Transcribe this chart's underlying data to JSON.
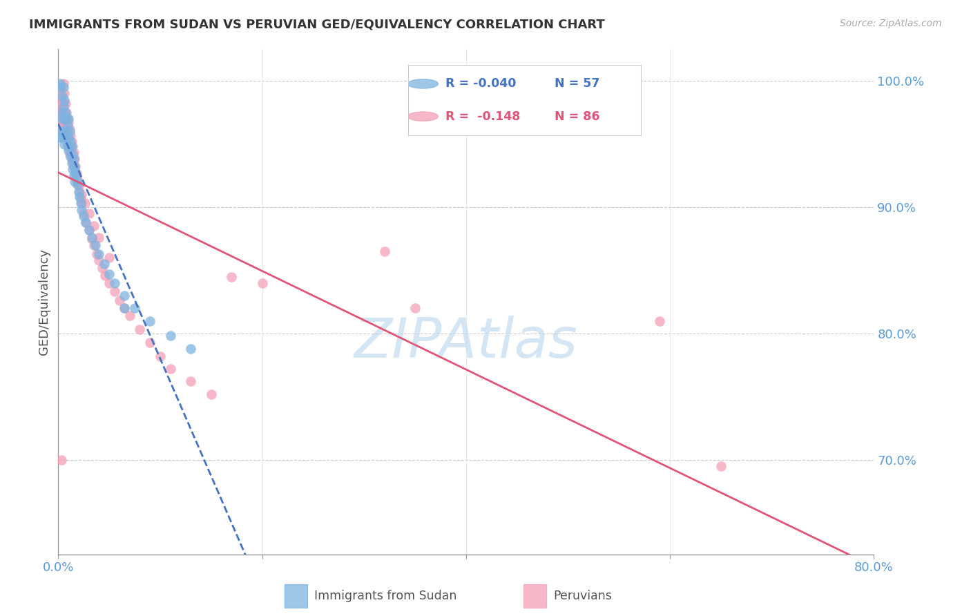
{
  "title": "IMMIGRANTS FROM SUDAN VS PERUVIAN GED/EQUIVALENCY CORRELATION CHART",
  "source": "Source: ZipAtlas.com",
  "ylabel": "GED/Equivalency",
  "x_min": 0.0,
  "x_max": 0.8,
  "y_min": 0.625,
  "y_max": 1.025,
  "y_ticks": [
    0.7,
    0.8,
    0.9,
    1.0
  ],
  "y_tick_labels": [
    "70.0%",
    "80.0%",
    "90.0%",
    "100.0%"
  ],
  "x_ticks": [
    0.0,
    0.2,
    0.4,
    0.6,
    0.8
  ],
  "x_tick_labels": [
    "0.0%",
    "",
    "",
    "",
    "80.0%"
  ],
  "legend_r_blue": "-0.040",
  "legend_n_blue": "57",
  "legend_r_pink": "-0.148",
  "legend_n_pink": "86",
  "blue_color": "#7db3e0",
  "pink_color": "#f4a0b8",
  "trend_blue_color": "#4472c4",
  "trend_pink_color": "#e05577",
  "watermark": "ZIPAtlas",
  "watermark_color": "#b8d4ee",
  "blue_dots_x": [
    0.001,
    0.002,
    0.003,
    0.003,
    0.004,
    0.004,
    0.005,
    0.005,
    0.005,
    0.006,
    0.006,
    0.006,
    0.007,
    0.007,
    0.008,
    0.008,
    0.009,
    0.009,
    0.01,
    0.01,
    0.01,
    0.011,
    0.011,
    0.012,
    0.012,
    0.013,
    0.013,
    0.014,
    0.014,
    0.015,
    0.015,
    0.016,
    0.016,
    0.017,
    0.018,
    0.019,
    0.02,
    0.021,
    0.022,
    0.023,
    0.025,
    0.027,
    0.03,
    0.033,
    0.036,
    0.04,
    0.045,
    0.05,
    0.055,
    0.065,
    0.075,
    0.09,
    0.11,
    0.13,
    0.002,
    0.004,
    0.065
  ],
  "blue_dots_y": [
    0.955,
    0.995,
    0.975,
    0.96,
    0.97,
    0.955,
    0.995,
    0.98,
    0.96,
    0.985,
    0.97,
    0.95,
    0.975,
    0.96,
    0.97,
    0.955,
    0.965,
    0.95,
    0.97,
    0.955,
    0.945,
    0.96,
    0.948,
    0.952,
    0.94,
    0.948,
    0.935,
    0.942,
    0.93,
    0.938,
    0.925,
    0.932,
    0.92,
    0.928,
    0.922,
    0.918,
    0.912,
    0.908,
    0.903,
    0.898,
    0.893,
    0.888,
    0.882,
    0.876,
    0.87,
    0.863,
    0.855,
    0.847,
    0.84,
    0.83,
    0.82,
    0.81,
    0.798,
    0.788,
    0.998,
    0.988,
    0.82
  ],
  "pink_dots_x": [
    0.001,
    0.002,
    0.003,
    0.003,
    0.004,
    0.004,
    0.005,
    0.005,
    0.005,
    0.006,
    0.006,
    0.007,
    0.007,
    0.008,
    0.008,
    0.009,
    0.009,
    0.01,
    0.01,
    0.011,
    0.011,
    0.012,
    0.012,
    0.013,
    0.013,
    0.014,
    0.014,
    0.015,
    0.015,
    0.016,
    0.017,
    0.018,
    0.019,
    0.02,
    0.021,
    0.022,
    0.023,
    0.025,
    0.027,
    0.03,
    0.033,
    0.035,
    0.038,
    0.04,
    0.043,
    0.046,
    0.05,
    0.055,
    0.06,
    0.065,
    0.07,
    0.08,
    0.09,
    0.1,
    0.11,
    0.13,
    0.15,
    0.002,
    0.003,
    0.004,
    0.005,
    0.006,
    0.007,
    0.008,
    0.009,
    0.01,
    0.011,
    0.012,
    0.013,
    0.015,
    0.017,
    0.02,
    0.023,
    0.026,
    0.03,
    0.035,
    0.04,
    0.05,
    0.003,
    0.17,
    0.2,
    0.35,
    0.59,
    0.32,
    0.003,
    0.65
  ],
  "pink_dots_y": [
    0.97,
    0.99,
    0.975,
    0.96,
    0.978,
    0.965,
    0.998,
    0.983,
    0.968,
    0.99,
    0.975,
    0.982,
    0.968,
    0.975,
    0.963,
    0.97,
    0.958,
    0.967,
    0.955,
    0.962,
    0.95,
    0.957,
    0.945,
    0.952,
    0.94,
    0.948,
    0.936,
    0.943,
    0.932,
    0.938,
    0.932,
    0.927,
    0.922,
    0.917,
    0.912,
    0.907,
    0.903,
    0.895,
    0.888,
    0.882,
    0.875,
    0.87,
    0.863,
    0.858,
    0.852,
    0.846,
    0.84,
    0.833,
    0.826,
    0.82,
    0.814,
    0.803,
    0.793,
    0.782,
    0.772,
    0.762,
    0.752,
    0.983,
    0.968,
    0.975,
    0.96,
    0.968,
    0.955,
    0.962,
    0.948,
    0.955,
    0.942,
    0.948,
    0.938,
    0.932,
    0.925,
    0.918,
    0.91,
    0.903,
    0.895,
    0.885,
    0.876,
    0.86,
    0.96,
    0.845,
    0.84,
    0.82,
    0.81,
    0.865,
    0.7,
    0.695
  ]
}
